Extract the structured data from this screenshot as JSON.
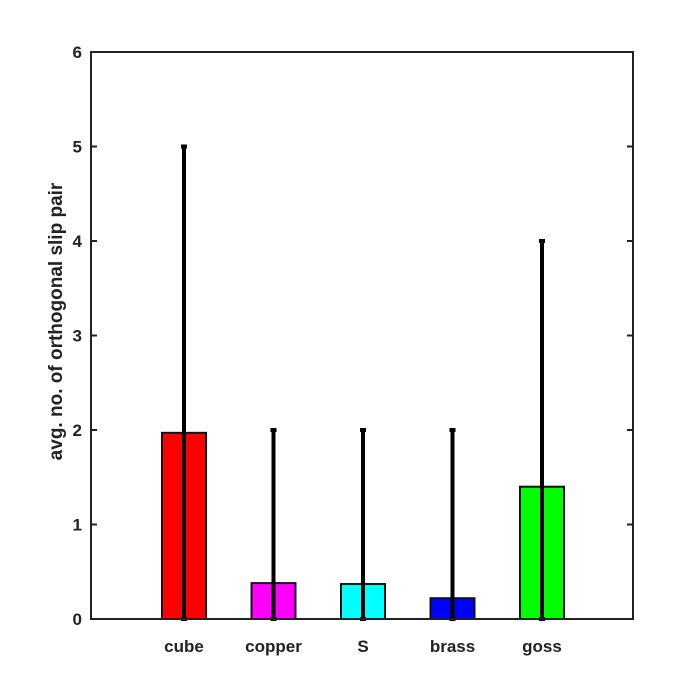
{
  "chart_data": {
    "type": "bar",
    "title": "",
    "xlabel": "",
    "ylabel": "avg. no. of orthogonal slip pair",
    "ylim": [
      0,
      6
    ],
    "yticks": [
      "0",
      "1",
      "2",
      "3",
      "4",
      "5",
      "6"
    ],
    "grid": false,
    "categories": [
      "cube",
      "copper",
      "S",
      "brass",
      "goss"
    ],
    "values": [
      1.97,
      0.38,
      0.37,
      0.22,
      1.4
    ],
    "error_low": [
      0,
      0,
      0,
      0,
      0
    ],
    "error_high": [
      5,
      2,
      2,
      2,
      4
    ],
    "colors": [
      "#ff0000",
      "#ff00ff",
      "#00ffff",
      "#0000ff",
      "#00ff00"
    ]
  }
}
